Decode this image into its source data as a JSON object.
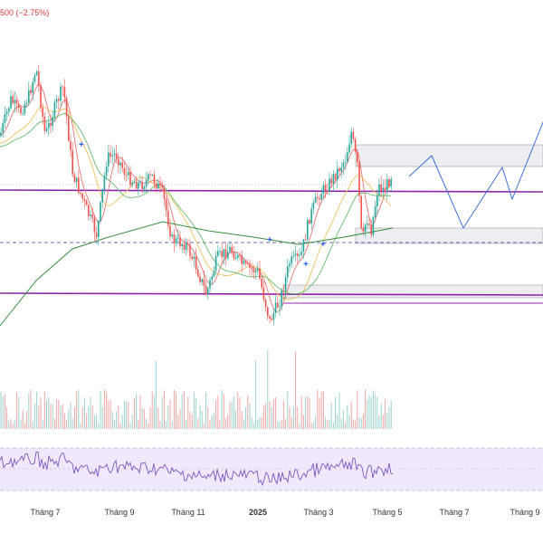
{
  "header": {
    "change_text": "500 (−2.75%)"
  },
  "colors": {
    "up": "#26a69a",
    "down": "#ef5350",
    "ma_fast": "#e57373",
    "ma_mid": "#f0c060",
    "ma_slow": "#66bb6a",
    "ma_long": "#388e3c",
    "level": "#8e24aa",
    "zone_fill": "#eceef2",
    "projection": "#3d6fd6",
    "rsi": "#7e57c2",
    "rsi_band": "#efe9fb",
    "marker": "#2962ff"
  },
  "chart_data": {
    "type": "candlestick",
    "x_ticks": [
      "Tháng 7",
      "Tháng 9",
      "Tháng 11",
      "2025",
      "Tháng 3",
      "Tháng 5",
      "Tháng 7",
      "Tháng 9"
    ],
    "price_levels_note": "",
    "panes": [
      "price",
      "volume",
      "rsi"
    ]
  }
}
